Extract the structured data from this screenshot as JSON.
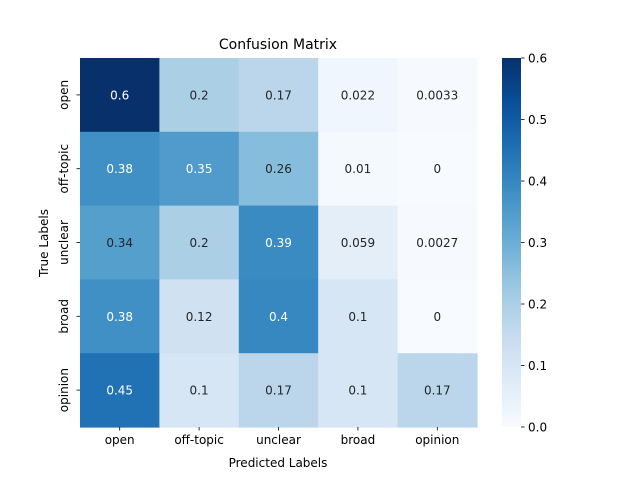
{
  "chart_data": {
    "type": "heatmap",
    "title": "Confusion Matrix",
    "xlabel": "Predicted Labels",
    "ylabel": "True Labels",
    "x_categories": [
      "open",
      "off-topic",
      "unclear",
      "broad",
      "opinion"
    ],
    "y_categories": [
      "open",
      "off-topic",
      "unclear",
      "broad",
      "opinion"
    ],
    "values": [
      [
        0.6,
        0.2,
        0.17,
        0.022,
        0.0033
      ],
      [
        0.38,
        0.35,
        0.26,
        0.01,
        0
      ],
      [
        0.34,
        0.2,
        0.39,
        0.059,
        0.0027
      ],
      [
        0.38,
        0.12,
        0.4,
        0.1,
        0
      ],
      [
        0.45,
        0.1,
        0.17,
        0.1,
        0.17
      ]
    ],
    "cell_labels": [
      [
        "0.6",
        "0.2",
        "0.17",
        "0.022",
        "0.0033"
      ],
      [
        "0.38",
        "0.35",
        "0.26",
        "0.01",
        "0"
      ],
      [
        "0.34",
        "0.2",
        "0.39",
        "0.059",
        "0.0027"
      ],
      [
        "0.38",
        "0.12",
        "0.4",
        "0.1",
        "0"
      ],
      [
        "0.45",
        "0.1",
        "0.17",
        "0.1",
        "0.17"
      ]
    ],
    "colorbar": {
      "range": [
        0.0,
        0.6
      ],
      "ticks": [
        0.0,
        0.1,
        0.2,
        0.3,
        0.4,
        0.5,
        0.6
      ],
      "tick_labels": [
        "0.0",
        "0.1",
        "0.2",
        "0.3",
        "0.4",
        "0.5",
        "0.6"
      ],
      "colormap": "Blues"
    },
    "grid": false
  }
}
